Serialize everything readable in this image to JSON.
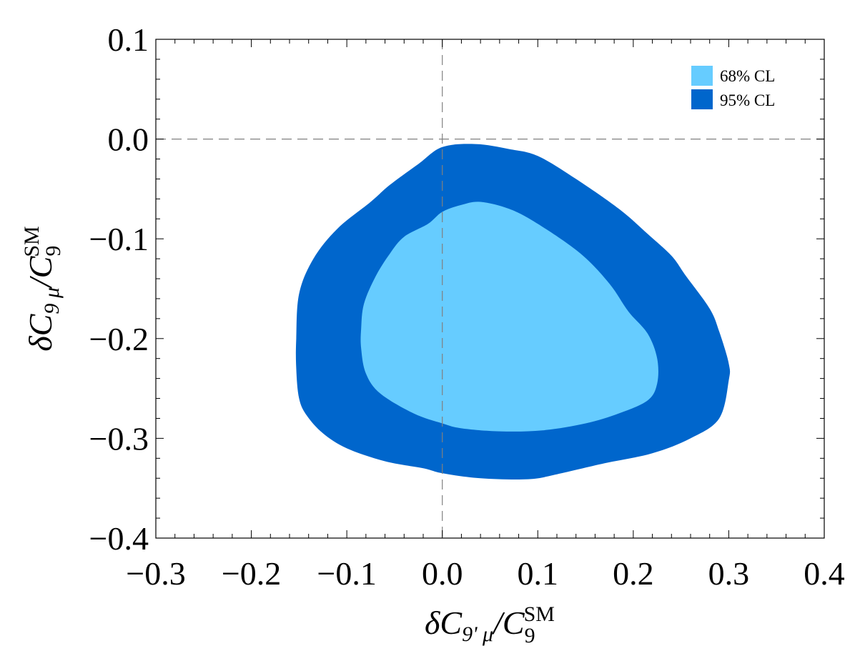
{
  "chart_data": {
    "type": "contour",
    "xlabel": {
      "prefix": "δC",
      "sub": "9' μ",
      "over": "/C",
      "sub2": "9",
      "sup2": "SM"
    },
    "ylabel": {
      "prefix": "δC",
      "sub": "9 μ",
      "over": "/C",
      "sub2": "9",
      "sup2": "SM"
    },
    "xlim": [
      -0.3,
      0.4
    ],
    "ylim": [
      -0.4,
      0.1
    ],
    "x_ticks": [
      -0.3,
      -0.2,
      -0.1,
      0.0,
      0.1,
      0.2,
      0.3,
      0.4
    ],
    "x_tick_labels": [
      "−0.3",
      "−0.2",
      "−0.1",
      "0.0",
      "0.1",
      "0.2",
      "0.3",
      "0.4"
    ],
    "y_ticks": [
      0.1,
      0.0,
      -0.1,
      -0.2,
      -0.3,
      -0.4
    ],
    "y_tick_labels": [
      "0.1",
      "0.0",
      "−0.1",
      "−0.2",
      "−0.3",
      "−0.4"
    ],
    "reference_lines": {
      "x": 0.0,
      "y": 0.0,
      "style": "dashed"
    },
    "legend": {
      "placement": "top-right"
    },
    "series": [
      {
        "name": "95% CL",
        "color": "#0066cc",
        "contour": [
          [
            -0.153,
            -0.2
          ],
          [
            -0.15,
            -0.155
          ],
          [
            -0.135,
            -0.12
          ],
          [
            -0.11,
            -0.09
          ],
          [
            -0.075,
            -0.063
          ],
          [
            -0.055,
            -0.046
          ],
          [
            -0.025,
            -0.025
          ],
          [
            0.0,
            -0.008
          ],
          [
            0.035,
            -0.005
          ],
          [
            0.07,
            -0.01
          ],
          [
            0.1,
            -0.017
          ],
          [
            0.14,
            -0.04
          ],
          [
            0.185,
            -0.07
          ],
          [
            0.215,
            -0.095
          ],
          [
            0.24,
            -0.117
          ],
          [
            0.255,
            -0.137
          ],
          [
            0.28,
            -0.17
          ],
          [
            0.29,
            -0.193
          ],
          [
            0.3,
            -0.225
          ],
          [
            0.3,
            -0.242
          ],
          [
            0.29,
            -0.28
          ],
          [
            0.26,
            -0.3
          ],
          [
            0.22,
            -0.315
          ],
          [
            0.17,
            -0.325
          ],
          [
            0.12,
            -0.336
          ],
          [
            0.09,
            -0.341
          ],
          [
            0.04,
            -0.34
          ],
          [
            0.0,
            -0.335
          ],
          [
            -0.02,
            -0.33
          ],
          [
            -0.06,
            -0.323
          ],
          [
            -0.1,
            -0.31
          ],
          [
            -0.125,
            -0.295
          ],
          [
            -0.142,
            -0.277
          ],
          [
            -0.15,
            -0.26
          ],
          [
            -0.153,
            -0.23
          ]
        ]
      },
      {
        "name": "68% CL",
        "color": "#66ccff",
        "contour": [
          [
            -0.085,
            -0.19
          ],
          [
            -0.082,
            -0.165
          ],
          [
            -0.07,
            -0.138
          ],
          [
            -0.055,
            -0.115
          ],
          [
            -0.04,
            -0.098
          ],
          [
            -0.015,
            -0.085
          ],
          [
            0.0,
            -0.073
          ],
          [
            0.02,
            -0.066
          ],
          [
            0.04,
            -0.063
          ],
          [
            0.07,
            -0.07
          ],
          [
            0.1,
            -0.085
          ],
          [
            0.145,
            -0.115
          ],
          [
            0.175,
            -0.145
          ],
          [
            0.195,
            -0.173
          ],
          [
            0.215,
            -0.195
          ],
          [
            0.225,
            -0.22
          ],
          [
            0.225,
            -0.245
          ],
          [
            0.215,
            -0.262
          ],
          [
            0.185,
            -0.275
          ],
          [
            0.15,
            -0.285
          ],
          [
            0.105,
            -0.292
          ],
          [
            0.06,
            -0.293
          ],
          [
            0.02,
            -0.29
          ],
          [
            0.0,
            -0.285
          ],
          [
            -0.03,
            -0.275
          ],
          [
            -0.065,
            -0.255
          ],
          [
            -0.08,
            -0.235
          ],
          [
            -0.085,
            -0.21
          ]
        ]
      }
    ]
  }
}
